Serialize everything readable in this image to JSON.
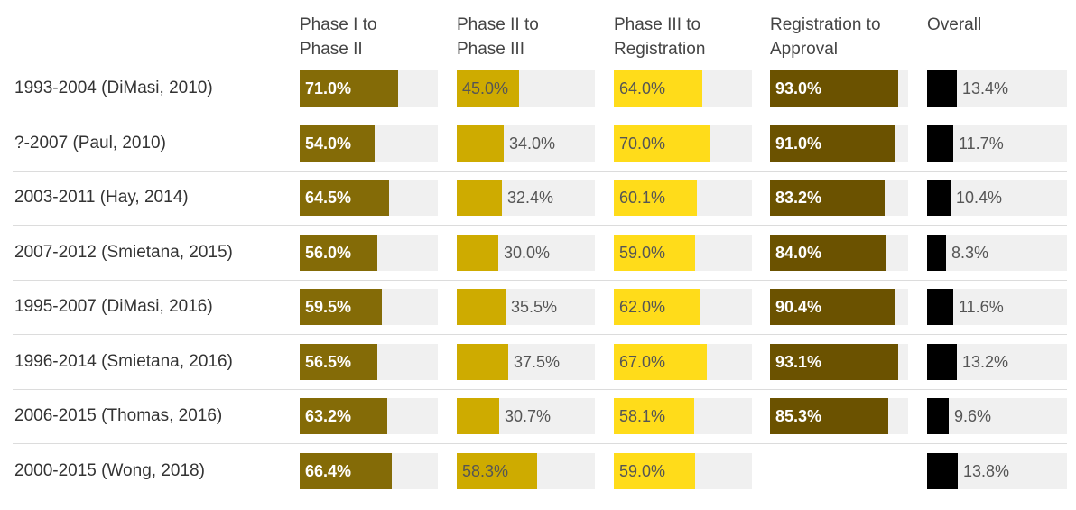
{
  "colors": {
    "phase1": "#846b07",
    "phase2": "#ceab00",
    "phase3": "#ffdc1a",
    "registration": "#6b5200",
    "overall": "#000000",
    "track": "#f0f0f0"
  },
  "chart_data": {
    "type": "bar",
    "columns": [
      {
        "key": "phase1",
        "label": "Phase I to\nPhase II"
      },
      {
        "key": "phase2",
        "label": "Phase II to\nPhase III"
      },
      {
        "key": "phase3",
        "label": "Phase III to\nRegistration"
      },
      {
        "key": "registration",
        "label": "Registration to\nApproval"
      },
      {
        "key": "overall",
        "label": "Overall"
      }
    ],
    "rows": [
      {
        "label": "1993-2004 (DiMasi, 2010)",
        "values": {
          "phase1": 71.0,
          "phase2": 45.0,
          "phase3": 64.0,
          "registration": 93.0,
          "overall": 13.4
        },
        "display": {
          "phase1": "71.0%",
          "phase2": "45.0%",
          "phase3": "64.0%",
          "registration": "93.0%",
          "overall": "13.4%"
        }
      },
      {
        "label": "?-2007 (Paul, 2010)",
        "values": {
          "phase1": 54.0,
          "phase2": 34.0,
          "phase3": 70.0,
          "registration": 91.0,
          "overall": 11.7
        },
        "display": {
          "phase1": "54.0%",
          "phase2": "34.0%",
          "phase3": "70.0%",
          "registration": "91.0%",
          "overall": "11.7%"
        }
      },
      {
        "label": "2003-2011 (Hay, 2014)",
        "values": {
          "phase1": 64.5,
          "phase2": 32.4,
          "phase3": 60.1,
          "registration": 83.2,
          "overall": 10.4
        },
        "display": {
          "phase1": "64.5%",
          "phase2": "32.4%",
          "phase3": "60.1%",
          "registration": "83.2%",
          "overall": "10.4%"
        }
      },
      {
        "label": "2007-2012 (Smietana, 2015)",
        "values": {
          "phase1": 56.0,
          "phase2": 30.0,
          "phase3": 59.0,
          "registration": 84.0,
          "overall": 8.3
        },
        "display": {
          "phase1": "56.0%",
          "phase2": "30.0%",
          "phase3": "59.0%",
          "registration": "84.0%",
          "overall": "8.3%"
        }
      },
      {
        "label": "1995-2007 (DiMasi, 2016)",
        "values": {
          "phase1": 59.5,
          "phase2": 35.5,
          "phase3": 62.0,
          "registration": 90.4,
          "overall": 11.6
        },
        "display": {
          "phase1": "59.5%",
          "phase2": "35.5%",
          "phase3": "62.0%",
          "registration": "90.4%",
          "overall": "11.6%"
        }
      },
      {
        "label": "1996-2014 (Smietana, 2016)",
        "values": {
          "phase1": 56.5,
          "phase2": 37.5,
          "phase3": 67.0,
          "registration": 93.1,
          "overall": 13.2
        },
        "display": {
          "phase1": "56.5%",
          "phase2": "37.5%",
          "phase3": "67.0%",
          "registration": "93.1%",
          "overall": "13.2%"
        }
      },
      {
        "label": "2006-2015 (Thomas, 2016)",
        "values": {
          "phase1": 63.2,
          "phase2": 30.7,
          "phase3": 58.1,
          "registration": 85.3,
          "overall": 9.6
        },
        "display": {
          "phase1": "63.2%",
          "phase2": "30.7%",
          "phase3": "58.1%",
          "registration": "85.3%",
          "overall": "9.6%"
        }
      },
      {
        "label": "2000-2015 (Wong, 2018)",
        "values": {
          "phase1": 66.4,
          "phase2": 58.3,
          "phase3": 59.0,
          "registration": null,
          "overall": 13.8
        },
        "display": {
          "phase1": "66.4%",
          "phase2": "58.3%",
          "phase3": "59.0%",
          "registration": "",
          "overall": "13.8%"
        }
      }
    ]
  }
}
